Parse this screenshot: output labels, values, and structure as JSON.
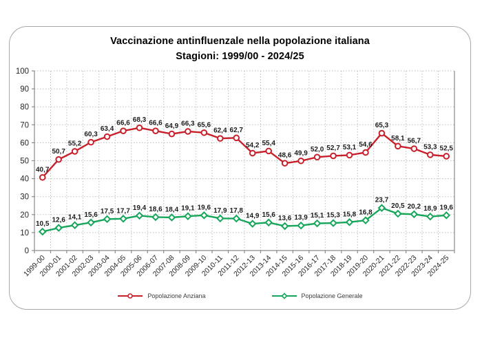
{
  "title": {
    "line1": "Vaccinazione antinfluenzale nella popolazione italiana",
    "line2": "Stagioni: 1999/00 - 2024/25"
  },
  "chart_data": {
    "type": "line",
    "title": "Vaccinazione antinfluenzale nella popolazione italiana",
    "subtitle": "Stagioni: 1999/00 - 2024/25",
    "categories": [
      "1999-00",
      "2000-01",
      "2001-02",
      "2002-03",
      "2003-04",
      "2004-05",
      "2005-06",
      "2006-07",
      "2007-08",
      "2008-09",
      "2009-10",
      "2010-11",
      "2011-12",
      "2012-13",
      "2013-14",
      "2014-15",
      "2015-16",
      "2016-17",
      "2017-18",
      "2018-19",
      "2019-20",
      "2020-21",
      "2021-22",
      "2022-23",
      "2023-24",
      "2024-25"
    ],
    "series": [
      {
        "name": "Popolazione Anziana",
        "color": "#c8202a",
        "marker": "circle",
        "values": [
          40.7,
          50.7,
          55.2,
          60.3,
          63.4,
          66.6,
          68.3,
          66.6,
          64.9,
          66.3,
          65.6,
          62.4,
          62.7,
          54.2,
          55.4,
          48.6,
          49.9,
          52.0,
          52.7,
          53.1,
          54.6,
          65.3,
          58.1,
          56.7,
          53.3,
          52.5
        ]
      },
      {
        "name": "Popolazione Generale",
        "color": "#15a65a",
        "marker": "diamond",
        "values": [
          10.5,
          12.6,
          14.1,
          15.6,
          17.5,
          17.7,
          19.4,
          18.6,
          18.4,
          19.1,
          19.6,
          17.9,
          17.8,
          14.9,
          15.6,
          13.6,
          13.9,
          15.1,
          15.3,
          15.8,
          16.8,
          23.7,
          20.5,
          20.2,
          18.9,
          19.6
        ]
      }
    ],
    "xlabel": "",
    "ylabel": "",
    "ylim": [
      0,
      100
    ],
    "ytick_step": 10,
    "grid": true,
    "grid_style": "dotted",
    "legend_position": "bottom",
    "decimal_comma": true,
    "data_labels": true
  },
  "colors": {
    "series_anziana": "#c8202a",
    "series_generale": "#15a65a",
    "marker_fill": "#ffffff",
    "gridline": "#bdbdbd",
    "axis": "#8a8a8a",
    "tick_label": "#262626",
    "data_label": "#1c1c1c",
    "card_border": "#a8a8a8",
    "background": "#ffffff"
  }
}
